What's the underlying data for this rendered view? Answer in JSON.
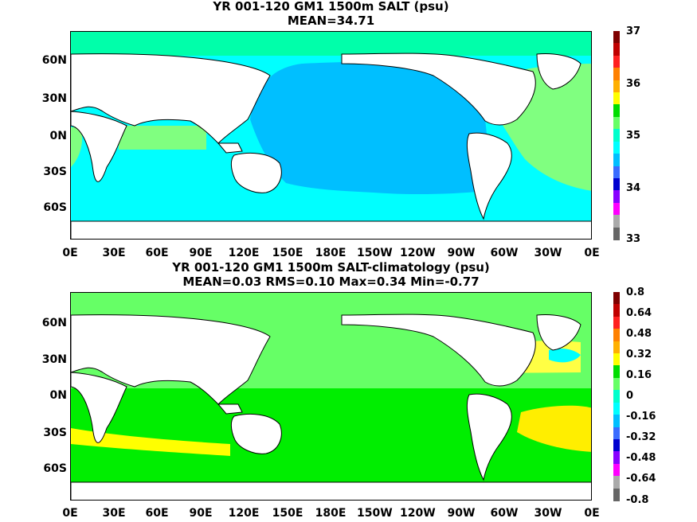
{
  "panels": [
    {
      "title_line1": "YR 001-120 GM1 1500m SALT (psu)",
      "title_line2": "MEAN=34.71",
      "lat_labels": [
        "60N",
        "30N",
        "0N",
        "30S",
        "60S"
      ],
      "lon_labels": [
        "0E",
        "30E",
        "60E",
        "90E",
        "120E",
        "150E",
        "180E",
        "150W",
        "120W",
        "90W",
        "60W",
        "30W",
        "0E"
      ],
      "colorbar": {
        "labels": [
          "37",
          "36",
          "35",
          "34",
          "33"
        ],
        "colors": [
          "#7f0000",
          "#c00000",
          "#ff2020",
          "#ff8000",
          "#ffb000",
          "#ffff00",
          "#00dd00",
          "#66ff66",
          "#00ffcc",
          "#00ffff",
          "#00bfff",
          "#3a6cff",
          "#0000d0",
          "#8800ff",
          "#ff00ff",
          "#aaaaaa",
          "#666666"
        ]
      },
      "fields": {
        "pacific": "#00bfff",
        "atlantic": "#80ff80",
        "indian": "#00ffff",
        "southern": "#00ffff",
        "arctic": "#00ffaa"
      }
    },
    {
      "title_line1": "YR 001-120 GM1 1500m SALT-climatology (psu)",
      "title_line2": "MEAN=0.03   RMS=0.10   Max=0.34   Min=-0.77",
      "lat_labels": [
        "60N",
        "30N",
        "0N",
        "30S",
        "60S"
      ],
      "lon_labels": [
        "0E",
        "30E",
        "60E",
        "90E",
        "120E",
        "150E",
        "180E",
        "150W",
        "120W",
        "90W",
        "60W",
        "30W",
        "0E"
      ],
      "colorbar": {
        "labels": [
          "0.8",
          "0.64",
          "0.48",
          "0.32",
          "0.16",
          "0",
          "-0.16",
          "-0.32",
          "-0.48",
          "-0.64",
          "-0.8"
        ],
        "colors": [
          "#7f0000",
          "#c00000",
          "#ff2020",
          "#ff8000",
          "#ffb000",
          "#ffff00",
          "#00dd00",
          "#66ff66",
          "#00ffcc",
          "#00ffff",
          "#00bfff",
          "#3a6cff",
          "#0000d0",
          "#8800ff",
          "#ff00ff",
          "#aaaaaa",
          "#666666"
        ]
      },
      "fields": {
        "pacific": "#66ff66",
        "southern_band": "#00ee00",
        "south_belt": "#ffff00",
        "atlantic_south": "#ffee00",
        "gulf_stream": "#ffff44",
        "negative_cell": "#00ffff"
      }
    }
  ]
}
